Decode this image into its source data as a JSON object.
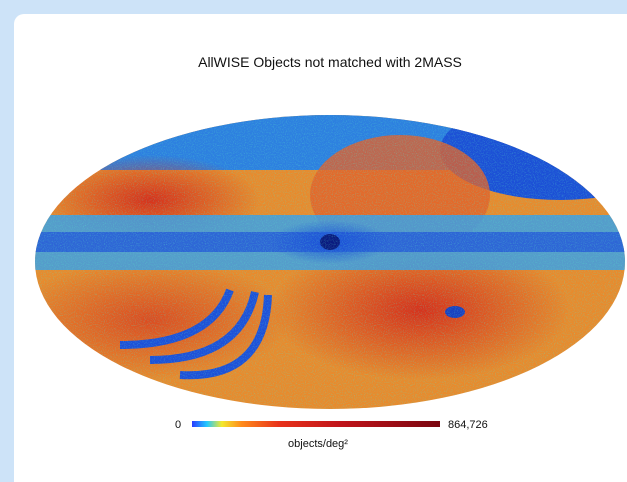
{
  "title": "AllWISE Objects not matched with 2MASS",
  "colorbar": {
    "min": "0",
    "max": "864,726",
    "label": "objects/deg²"
  }
}
